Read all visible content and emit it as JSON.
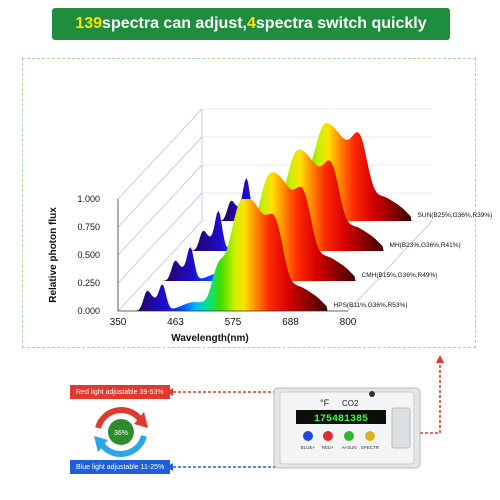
{
  "banner": {
    "part1": "139",
    "part2": " spectra can adjust, ",
    "part3": "4",
    "part4": " spectra switch quickly"
  },
  "chart_data": {
    "type": "area",
    "ylabel": "Relative photon flux",
    "xlabel": "Wavelength(nm)",
    "x_ticks": [
      "350",
      "463",
      "575",
      "688",
      "800"
    ],
    "y_ticks": [
      "0.000",
      "0.250",
      "0.500",
      "0.750",
      "1.000"
    ],
    "xlim": [
      350,
      800
    ],
    "ylim": [
      0,
      1
    ],
    "series": [
      {
        "name": "SUN(B25%,G36%,R39%)",
        "depth": 3,
        "blue_peak": 0.92,
        "red_peak": 0.72
      },
      {
        "name": "MH(B23%,G36%,R41%)",
        "depth": 2,
        "blue_peak": 0.86,
        "red_peak": 0.76
      },
      {
        "name": "CMH(B15%,G36%,R49%)",
        "depth": 1,
        "blue_peak": 0.72,
        "red_peak": 0.84
      },
      {
        "name": "HPS(B11%,G36%,R53%)",
        "depth": 0,
        "blue_peak": 0.56,
        "red_peak": 0.9
      }
    ]
  },
  "adjust": {
    "red_label": "Red light adjustable 39-53%",
    "blue_label": "Blue light adjustable 11-25%",
    "center_value": "36%"
  },
  "controller": {
    "display": "175481385",
    "icons": [
      "°F",
      "CO2"
    ],
    "buttons": [
      {
        "label": "BLUE+",
        "color": "#1f49d8"
      },
      {
        "label": "RED+",
        "color": "#e12b2b"
      },
      {
        "label": "AI-SUN",
        "color": "#35b533"
      },
      {
        "label": "SPECTR",
        "color": "#d9b21a"
      }
    ]
  },
  "colors": {
    "banner": "#1e8e3e",
    "accent": "#ffe100",
    "red": "#e0392d",
    "blue": "#1f5fd9",
    "frame": "#a6d7a0"
  }
}
